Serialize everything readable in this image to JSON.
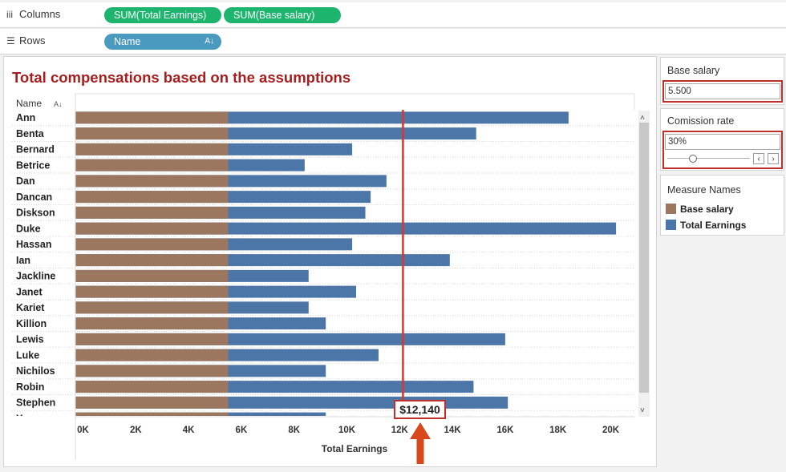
{
  "shelves": {
    "columns": {
      "label": "Columns",
      "pills": [
        "SUM(Total Earnings)",
        "SUM(Base salary)"
      ]
    },
    "rows": {
      "label": "Rows",
      "pills": [
        "Name"
      ]
    }
  },
  "view": {
    "title": "Total compensations based on the assumptions",
    "row_header": "Name",
    "reference_label": "$12,140"
  },
  "params": {
    "base_salary": {
      "title": "Base salary",
      "value": "5.500"
    },
    "commission_rate": {
      "title": "Comission rate",
      "value": "30%",
      "slider_level": 0.3
    }
  },
  "legend": {
    "title": "Measure Names",
    "items": [
      {
        "label": "Base salary",
        "color": "#9c7760"
      },
      {
        "label": "Total Earnings",
        "color": "#4d76a8"
      }
    ]
  },
  "colors": {
    "accent": "#a61e1e",
    "reference_line": "#e2322c",
    "arrow": "#d9481c",
    "pill_green": "#1db46d",
    "pill_blue": "#4a9ac0"
  },
  "chart_data": {
    "type": "bar",
    "orientation": "horizontal",
    "categories": [
      "Ann",
      "Benta",
      "Bernard",
      "Betrice",
      "Dan",
      "Dancan",
      "Diskson",
      "Duke",
      "Hassan",
      "Ian",
      "Jackline",
      "Janet",
      "Kariet",
      "Killion",
      "Lewis",
      "Luke",
      "Nichilos",
      "Robin",
      "Stephen",
      "Yvonne"
    ],
    "series": [
      {
        "name": "Base salary",
        "values": [
          5500,
          5500,
          5500,
          5500,
          5500,
          5500,
          5500,
          5500,
          5500,
          5500,
          5500,
          5500,
          5500,
          5500,
          5500,
          5500,
          5500,
          5500,
          5500,
          5500
        ]
      },
      {
        "name": "Total Earnings",
        "values": [
          18400,
          14900,
          10200,
          8400,
          11500,
          10900,
          10700,
          20200,
          10200,
          13900,
          8550,
          10350,
          8550,
          9200,
          16000,
          11200,
          9200,
          14800,
          16100,
          9200
        ]
      }
    ],
    "xlabel": "Total Earnings",
    "xlim": [
      0,
      21000
    ],
    "xticks": [
      0,
      2000,
      4000,
      6000,
      8000,
      10000,
      12000,
      14000,
      16000,
      18000,
      20000
    ],
    "xtick_labels": [
      "0K",
      "2K",
      "4K",
      "6K",
      "8K",
      "10K",
      "12K",
      "14K",
      "16K",
      "18K",
      "20K"
    ],
    "reference_line": 12140,
    "grid": "row dividers"
  }
}
